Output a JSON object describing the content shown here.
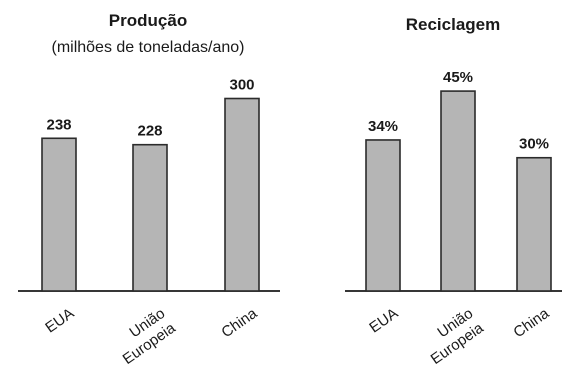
{
  "colors": {
    "bar_fill": "#b5b5b5",
    "bar_stroke": "#2b2b2b",
    "axis": "#1a1a1a"
  },
  "chart_data": [
    {
      "type": "bar",
      "title": "Produção",
      "subtitle": "(milhões de toneladas/ano)",
      "categories": [
        [
          "EUA"
        ],
        [
          "União",
          "Europeia"
        ],
        [
          "China"
        ]
      ],
      "values": [
        238,
        228,
        300
      ],
      "value_labels": [
        "238",
        "228",
        "300"
      ],
      "ylim": [
        0,
        360
      ],
      "grid": false,
      "legend": "none"
    },
    {
      "type": "bar",
      "title": "Reciclagem",
      "categories": [
        [
          "EUA"
        ],
        [
          "União",
          "Europeia"
        ],
        [
          "China"
        ]
      ],
      "values": [
        34,
        45,
        30
      ],
      "value_labels": [
        "34%",
        "45%",
        "30%"
      ],
      "ylim": [
        0,
        52
      ],
      "grid": false,
      "legend": "none"
    }
  ]
}
